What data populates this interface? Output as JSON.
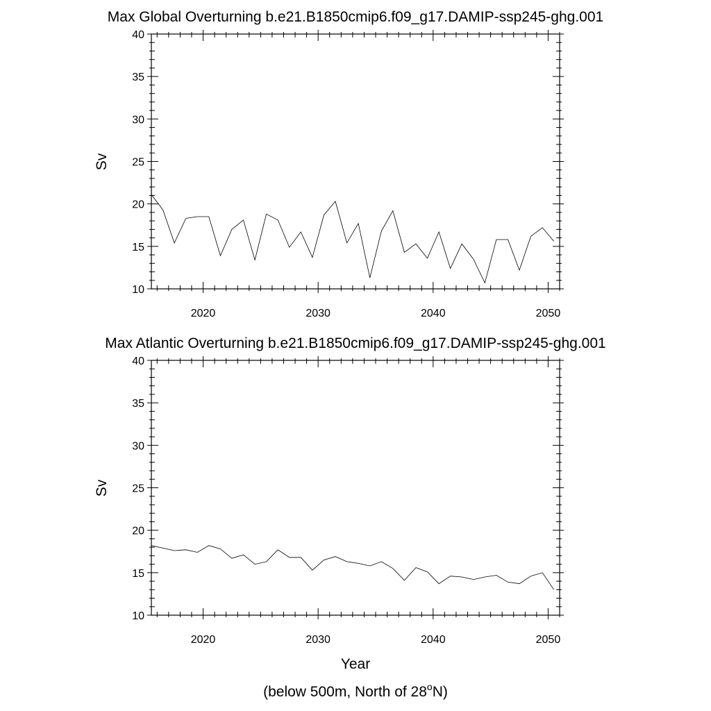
{
  "chart_data": [
    {
      "type": "line",
      "title": "Max Global Overturning b.e21.B1850cmip6.f09_g17.DAMIP-ssp245-ghg.001",
      "ylabel": "Sv",
      "xlabel": "",
      "xlim": [
        2015.5,
        2051
      ],
      "ylim": [
        10,
        40
      ],
      "xticks": [
        2020,
        2030,
        2040,
        2050
      ],
      "yticks": [
        10,
        15,
        20,
        25,
        30,
        35,
        40
      ],
      "grid": false,
      "series": [
        {
          "x": [
            2015.5,
            2016.5,
            2017.5,
            2018.5,
            2019.5,
            2020.5,
            2021.5,
            2022.5,
            2023.5,
            2024.5,
            2025.5,
            2026.5,
            2027.5,
            2028.5,
            2029.5,
            2030.5,
            2031.5,
            2032.5,
            2033.5,
            2034.5,
            2035.5,
            2036.5,
            2037.5,
            2038.5,
            2039.5,
            2040.5,
            2041.5,
            2042.5,
            2043.5,
            2044.5,
            2045.5,
            2046.5,
            2047.5,
            2048.5,
            2049.5,
            2050.5
          ],
          "values": [
            21.1,
            19.3,
            15.4,
            18.3,
            18.5,
            18.5,
            13.9,
            17.0,
            18.1,
            13.4,
            18.8,
            18.1,
            14.9,
            16.7,
            13.7,
            18.7,
            20.3,
            15.4,
            17.7,
            11.3,
            16.8,
            19.2,
            14.3,
            15.3,
            13.6,
            16.7,
            12.4,
            15.3,
            13.5,
            10.7,
            15.8,
            15.8,
            12.2,
            16.2,
            17.2,
            15.6
          ]
        }
      ]
    },
    {
      "type": "line",
      "title": "Max Atlantic Overturning b.e21.B1850cmip6.f09_g17.DAMIP-ssp245-ghg.001",
      "ylabel": "Sv",
      "xlabel": "Year",
      "xlim": [
        2015.5,
        2051
      ],
      "ylim": [
        10,
        40
      ],
      "xticks": [
        2020,
        2030,
        2040,
        2050
      ],
      "yticks": [
        10,
        15,
        20,
        25,
        30,
        35,
        40
      ],
      "grid": false,
      "series": [
        {
          "x": [
            2015.5,
            2016.5,
            2017.5,
            2018.5,
            2019.5,
            2020.5,
            2021.5,
            2022.5,
            2023.5,
            2024.5,
            2025.5,
            2026.5,
            2027.5,
            2028.5,
            2029.5,
            2030.5,
            2031.5,
            2032.5,
            2033.5,
            2034.5,
            2035.5,
            2036.5,
            2037.5,
            2038.5,
            2039.5,
            2040.5,
            2041.5,
            2042.5,
            2043.5,
            2044.5,
            2045.5,
            2046.5,
            2047.5,
            2048.5,
            2049.5,
            2050.5
          ],
          "values": [
            18.2,
            17.9,
            17.6,
            17.7,
            17.4,
            18.2,
            17.8,
            16.7,
            17.1,
            16.0,
            16.3,
            17.7,
            16.8,
            16.8,
            15.3,
            16.5,
            16.9,
            16.3,
            16.1,
            15.8,
            16.3,
            15.5,
            14.1,
            15.6,
            15.1,
            13.7,
            14.6,
            14.5,
            14.2,
            14.5,
            14.7,
            13.9,
            13.7,
            14.6,
            15.0,
            13.0
          ]
        }
      ]
    }
  ],
  "footnote": {
    "prefix": "(below 500m, North of 28",
    "sup": "o",
    "suffix": "N)"
  }
}
